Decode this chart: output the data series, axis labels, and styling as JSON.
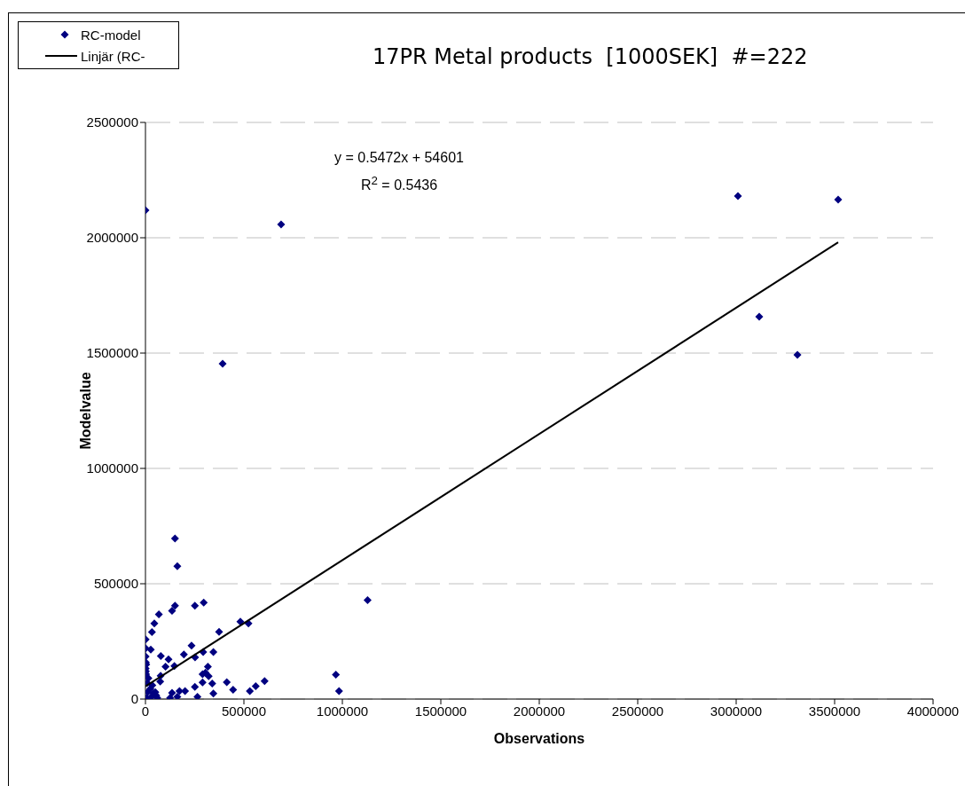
{
  "chart_data": {
    "type": "scatter",
    "title": "17PR Metal products  [1000SEK]  #=222",
    "xlabel": "Observations",
    "ylabel": "Modelvalue",
    "annotations": [
      "y = 0.5472x + 54601",
      "R$^{2}$ = 0.5436"
    ],
    "series": [
      {
        "name": "RC-model",
        "color": "#000080",
        "x": [
          0,
          3009000,
          3117000,
          3311000,
          3518000,
          392000,
          689000,
          150000,
          162000,
          150000,
          135000,
          251000,
          296000,
          68000,
          45000,
          33000,
          1000,
          27000,
          78000,
          117000,
          102000,
          147000,
          195000,
          234000,
          252000,
          293000,
          345000,
          374000,
          482000,
          523000,
          317000,
          305000,
          290000,
          321000,
          290000,
          339000,
          413000,
          251000,
          264000,
          345000,
          445000,
          530000,
          560000,
          605000,
          201000,
          173000,
          135000,
          162000,
          125000,
          1128000,
          967000,
          983000,
          77000,
          75000,
          1000,
          2000,
          1000,
          3000,
          12000,
          5000,
          2000,
          15000,
          4000,
          9000,
          1000,
          30000,
          40000,
          55000,
          60000,
          25000,
          35000,
          50000
        ],
        "values": [
          2119000,
          2181000,
          1658000,
          1492000,
          2165000,
          1454000,
          2058000,
          696000,
          576000,
          405000,
          383000,
          405000,
          418000,
          367000,
          328000,
          290000,
          259000,
          214000,
          187000,
          172000,
          140000,
          143000,
          193000,
          232000,
          181000,
          204000,
          204000,
          291000,
          336000,
          328000,
          140000,
          114000,
          108000,
          99000,
          72000,
          67000,
          73000,
          53000,
          10000,
          24000,
          40000,
          35000,
          56000,
          78000,
          35000,
          35000,
          27000,
          10000,
          5000,
          429000,
          106000,
          35000,
          101000,
          76000,
          185000,
          159000,
          133000,
          108000,
          31000,
          5000,
          120000,
          90000,
          150000,
          70000,
          220000,
          10000,
          25000,
          15000,
          5000,
          45000,
          60000,
          30000
        ]
      },
      {
        "name": "Linjär (RC-",
        "type": "line",
        "color": "#000000",
        "marker": "none",
        "x": [
          0,
          3518000
        ],
        "values": [
          55000,
          1980000
        ]
      }
    ],
    "xlim": [
      0,
      4000000
    ],
    "xticks": [
      0,
      500000,
      1000000,
      1500000,
      2000000,
      2500000,
      3000000,
      3500000,
      4000000
    ],
    "ylim": [
      0,
      2500000
    ],
    "yticks": [
      0,
      500000,
      1000000,
      1500000,
      2000000,
      2500000
    ],
    "grid": "y",
    "legend": "top left",
    "marker": "diamond",
    "line_style": "solid"
  }
}
